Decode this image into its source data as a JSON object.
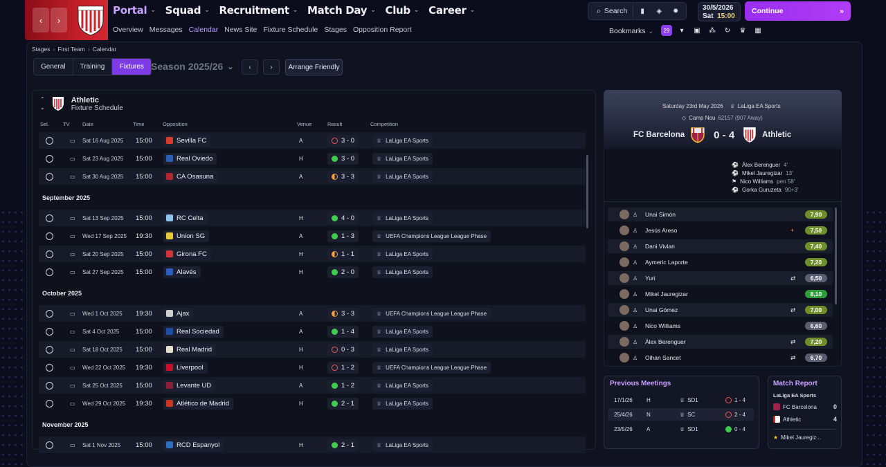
{
  "header": {
    "nav": [
      {
        "label": "Portal",
        "active": true
      },
      {
        "label": "Squad"
      },
      {
        "label": "Recruitment"
      },
      {
        "label": "Match Day"
      },
      {
        "label": "Club"
      },
      {
        "label": "Career"
      }
    ],
    "subnav": [
      "Overview",
      "Messages",
      "Calendar",
      "News Site",
      "Fixture Schedule",
      "Stages",
      "Opposition Report"
    ],
    "subnav_active": "Calendar",
    "search_label": "Search",
    "date": "30/5/2026",
    "day": "Sat",
    "time": "15:00",
    "continue_label": "Continue",
    "bookmarks_label": "Bookmarks",
    "messages_count": "29",
    "accent": "#a63af2"
  },
  "breadcrumb": [
    "Stages",
    "First Team",
    "Calendar"
  ],
  "tabs": [
    "General",
    "Training",
    "Fixtures"
  ],
  "active_tab": "Fixtures",
  "season": "Season 2025/26",
  "arrange_friendly": "Arrange Friendly",
  "fixtures": {
    "club": "Athletic",
    "subtitle": "Fixture Schedule",
    "columns": {
      "sel": "Sel.",
      "tv": "TV",
      "date": "Date",
      "time": "Time",
      "opposition": "Opposition",
      "venue": "Venue",
      "result": "Result",
      "competition": "Competition"
    },
    "months": [
      "September 2025",
      "October 2025",
      "November 2025"
    ],
    "rows": [
      {
        "date": "Sat 16 Aug 2025",
        "time": "15:00",
        "opp": "Sevilla FC",
        "venue": "A",
        "result": "3 - 0",
        "outcome": "loss",
        "comp": "LaLiga EA Sports",
        "color": "#d83a2c"
      },
      {
        "date": "Sat 23 Aug 2025",
        "time": "15:00",
        "opp": "Real Oviedo",
        "venue": "H",
        "result": "3 - 0",
        "outcome": "win",
        "comp": "LaLiga EA Sports",
        "color": "#2c5fb3"
      },
      {
        "date": "Sat 30 Aug 2025",
        "time": "15:00",
        "opp": "CA Osasuna",
        "venue": "A",
        "result": "3 - 3",
        "outcome": "draw",
        "comp": "LaLiga EA Sports",
        "color": "#b5252f"
      },
      {
        "date": "Sat 13 Sep 2025",
        "time": "15:00",
        "opp": "RC Celta",
        "venue": "H",
        "result": "4 - 0",
        "outcome": "win",
        "comp": "LaLiga EA Sports",
        "color": "#8cc4ea"
      },
      {
        "date": "Wed 17 Sep 2025",
        "time": "19:30",
        "opp": "Union SG",
        "venue": "A",
        "result": "1 - 3",
        "outcome": "win",
        "comp": "UEFA Champions League League Phase",
        "color": "#e8c93a"
      },
      {
        "date": "Sat 20 Sep 2025",
        "time": "15:00",
        "opp": "Girona FC",
        "venue": "H",
        "result": "1 - 1",
        "outcome": "draw",
        "comp": "LaLiga EA Sports",
        "color": "#d5333b"
      },
      {
        "date": "Sat 27 Sep 2025",
        "time": "15:00",
        "opp": "Alavés",
        "venue": "H",
        "result": "2 - 0",
        "outcome": "win",
        "comp": "LaLiga EA Sports",
        "color": "#2e5fbe"
      },
      {
        "date": "Wed 1 Oct 2025",
        "time": "19:30",
        "opp": "Ajax",
        "venue": "A",
        "result": "3 - 3",
        "outcome": "draw",
        "comp": "UEFA Champions League League Phase",
        "color": "#cfcfcf"
      },
      {
        "date": "Sat 4 Oct 2025",
        "time": "15:00",
        "opp": "Real Sociedad",
        "venue": "A",
        "result": "1 - 4",
        "outcome": "win",
        "comp": "LaLiga EA Sports",
        "color": "#1f4fa5"
      },
      {
        "date": "Sat 18 Oct 2025",
        "time": "15:00",
        "opp": "Real Madrid",
        "venue": "H",
        "result": "0 - 3",
        "outcome": "loss",
        "comp": "LaLiga EA Sports",
        "color": "#e6e1cf"
      },
      {
        "date": "Wed 22 Oct 2025",
        "time": "19:30",
        "opp": "Liverpool",
        "venue": "H",
        "result": "1 - 2",
        "outcome": "loss",
        "comp": "UEFA Champions League League Phase",
        "color": "#c8102e"
      },
      {
        "date": "Sat 25 Oct 2025",
        "time": "15:00",
        "opp": "Levante UD",
        "venue": "A",
        "result": "1 - 2",
        "outcome": "win",
        "comp": "LaLiga EA Sports",
        "color": "#8c1f3a"
      },
      {
        "date": "Wed 29 Oct 2025",
        "time": "19:30",
        "opp": "Atlético de Madrid",
        "venue": "H",
        "result": "2 - 1",
        "outcome": "win",
        "comp": "LaLiga EA Sports",
        "color": "#cb3524"
      },
      {
        "date": "Sat 1 Nov 2025",
        "time": "15:00",
        "opp": "RCD Espanyol",
        "venue": "H",
        "result": "2 - 1",
        "outcome": "win",
        "comp": "LaLiga EA Sports",
        "color": "#2b6fbf"
      }
    ]
  },
  "match": {
    "date": "Saturday 23rd May 2026",
    "competition": "LaLiga EA Sports",
    "stadium": "Camp Nou",
    "attendance": "62157 (907 Away)",
    "home": "FC Barcelona",
    "away": "Athletic",
    "score": "0 - 4",
    "scorers": [
      {
        "name": "Álex Berenguer",
        "min": "4'"
      },
      {
        "name": "Mikel Jauregizar",
        "min": "13'"
      },
      {
        "name": "Nico Williams",
        "min": "pen 58'"
      },
      {
        "name": "Gorka Guruzeta",
        "min": "90+3'"
      }
    ],
    "players": [
      {
        "name": "Unai Simón",
        "rating": "7,90",
        "color": "#6f8f2a",
        "event": ""
      },
      {
        "name": "Jesús Areso",
        "rating": "7,50",
        "color": "#6f8f2a",
        "event": "+"
      },
      {
        "name": "Dani Vivian",
        "rating": "7,40",
        "color": "#6f8f2a",
        "event": ""
      },
      {
        "name": "Aymeric Laporte",
        "rating": "7,20",
        "color": "#6f8f2a",
        "event": ""
      },
      {
        "name": "Yuri",
        "rating": "6,50",
        "color": "#5a5e70",
        "event": "⇄"
      },
      {
        "name": "Mikel Jauregizar",
        "rating": "8,10",
        "color": "#2f9d3a",
        "event": ""
      },
      {
        "name": "Unai Gómez",
        "rating": "7,00",
        "color": "#6f8f2a",
        "event": "⇄"
      },
      {
        "name": "Nico Williams",
        "rating": "6,60",
        "color": "#5a5e70",
        "event": ""
      },
      {
        "name": "Álex Berenguer",
        "rating": "7,20",
        "color": "#6f8f2a",
        "event": "⇄"
      },
      {
        "name": "Oihan Sancet",
        "rating": "6,70",
        "color": "#5a5e70",
        "event": "⇄"
      }
    ]
  },
  "previous_meetings": {
    "title": "Previous Meetings",
    "rows": [
      {
        "date": "17/1/26",
        "venue": "H",
        "comp": "SD1",
        "result": "1 - 4",
        "outcome": "loss"
      },
      {
        "date": "25/4/26",
        "venue": "N",
        "comp": "SC",
        "result": "2 - 4",
        "outcome": "loss"
      },
      {
        "date": "23/5/26",
        "venue": "A",
        "comp": "SD1",
        "result": "0 - 4",
        "outcome": "win"
      }
    ]
  },
  "match_report": {
    "title": "Match Report",
    "competition": "LaLiga EA Sports",
    "home": "FC Barcelona",
    "home_goals": "0",
    "away": "Athletic",
    "away_goals": "4",
    "motm": "Mikel Jauregiz..."
  }
}
